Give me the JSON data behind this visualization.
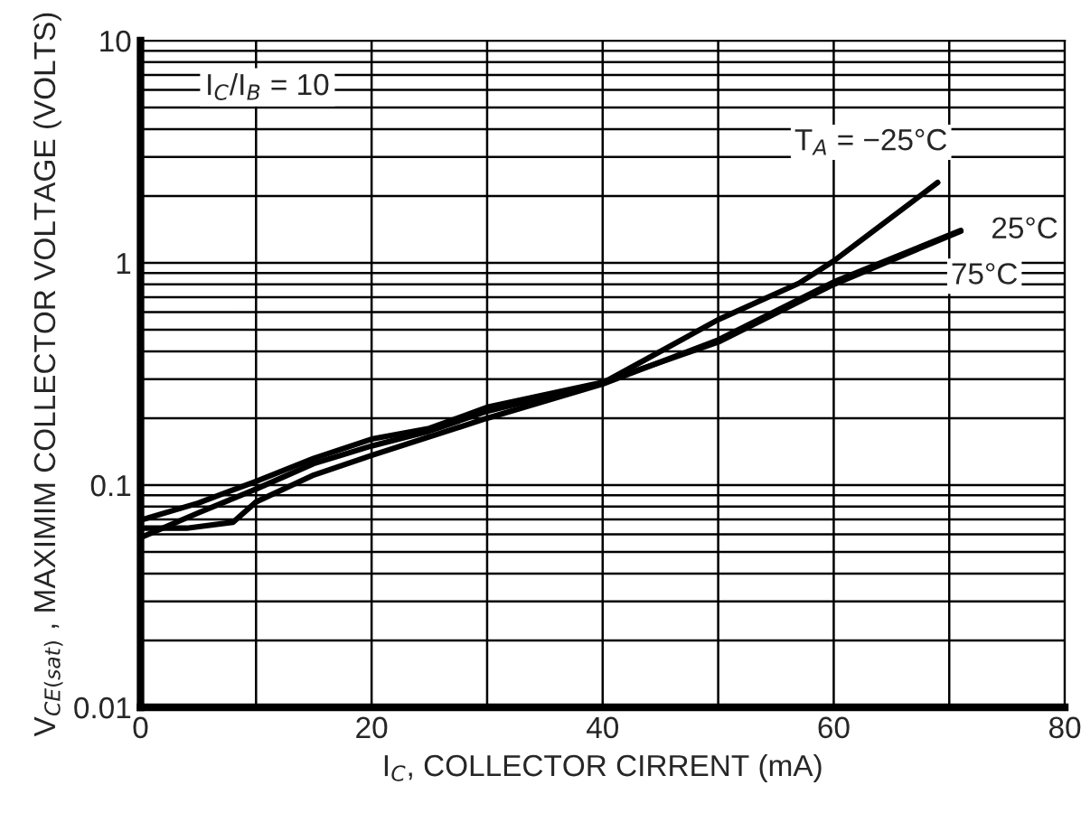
{
  "chart_data": {
    "type": "line",
    "xlabel": "I$_{C}$, COLLECTOR CIRRENT (mA)",
    "ylabel": "V$_{CE(sat)}$ , MAXIMIM COLLECTOR VOLTAGE (VOLTS)",
    "annotations": [
      "I$_{C}$/I$_{B}$ = 10"
    ],
    "series": [
      {
        "name": "T$_{A}$ = −25°C",
        "color": "#000000",
        "x": [
          0,
          5,
          10,
          15,
          20,
          25,
          30,
          40,
          50,
          57,
          60,
          69
        ],
        "values": [
          0.058,
          0.075,
          0.096,
          0.125,
          0.15,
          0.175,
          0.215,
          0.288,
          0.555,
          0.81,
          1.02,
          2.3
        ]
      },
      {
        "name": "25°C",
        "color": "#000000",
        "x": [
          0,
          4,
          8,
          10,
          15,
          20,
          30,
          40,
          50,
          60,
          71
        ],
        "values": [
          0.064,
          0.064,
          0.068,
          0.084,
          0.111,
          0.136,
          0.2,
          0.285,
          0.45,
          0.82,
          1.4
        ]
      },
      {
        "name": "75°C",
        "color": "#000000",
        "x": [
          0,
          5,
          10,
          15,
          20,
          25,
          30,
          40,
          50,
          60,
          71
        ],
        "values": [
          0.0695,
          0.083,
          0.104,
          0.132,
          0.161,
          0.18,
          0.224,
          0.29,
          0.44,
          0.8,
          1.39
        ]
      }
    ],
    "xlim": [
      0,
      80
    ],
    "xticks": [
      0,
      20,
      40,
      60,
      80
    ],
    "ylim": [
      0.01,
      10
    ],
    "yticks": [
      0.01,
      0.1,
      1,
      10
    ],
    "log": "y",
    "grid": true,
    "legend": false
  }
}
